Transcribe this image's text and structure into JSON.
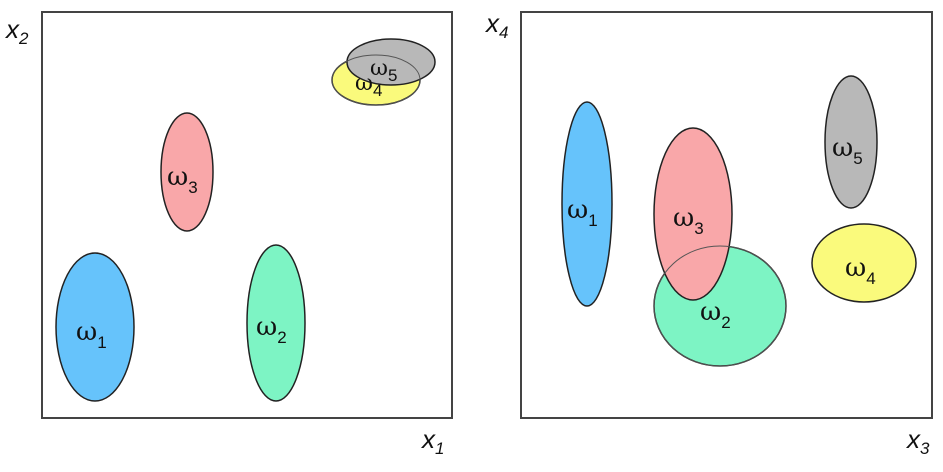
{
  "colors": {
    "omega1": "#66c3fb",
    "omega2": "#7df4c4",
    "omega3": "#f9a7a9",
    "omega4": "#fafa7c",
    "omega5": "#b8b8b8"
  },
  "panels": [
    {
      "x_axis": {
        "letter": "x",
        "sub": "1"
      },
      "y_axis": {
        "letter": "x",
        "sub": "2"
      },
      "clusters": [
        {
          "symbol": "ω",
          "sub": "1"
        },
        {
          "symbol": "ω",
          "sub": "2"
        },
        {
          "symbol": "ω",
          "sub": "3"
        },
        {
          "symbol": "ω",
          "sub": "4"
        },
        {
          "symbol": "ω",
          "sub": "5"
        }
      ]
    },
    {
      "x_axis": {
        "letter": "x",
        "sub": "3"
      },
      "y_axis": {
        "letter": "x",
        "sub": "4"
      },
      "clusters": [
        {
          "symbol": "ω",
          "sub": "1"
        },
        {
          "symbol": "ω",
          "sub": "2"
        },
        {
          "symbol": "ω",
          "sub": "3"
        },
        {
          "symbol": "ω",
          "sub": "4"
        },
        {
          "symbol": "ω",
          "sub": "5"
        }
      ]
    }
  ]
}
